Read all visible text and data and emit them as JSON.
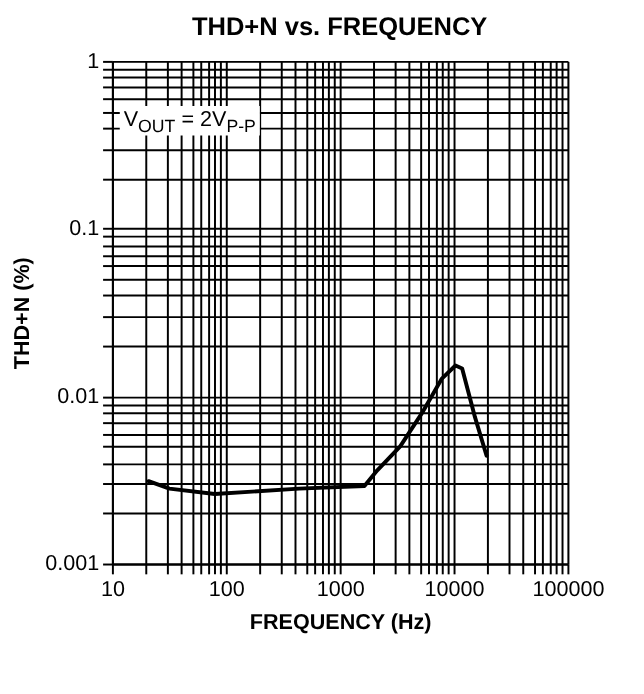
{
  "chart_data": {
    "type": "line",
    "title": "THD+N vs. FREQUENCY",
    "xlabel": "FREQUENCY (Hz)",
    "ylabel": "THD+N (%)",
    "log": "xy",
    "grid": true,
    "annotations": [
      "V$_{OUT}$ = 2V$_{P-P}$"
    ],
    "xlim": [
      10,
      100000
    ],
    "ylim": [
      0.001,
      1
    ],
    "xticks": [
      10,
      {
        "value": 20,
        "label": null
      },
      {
        "value": 30,
        "label": null
      },
      {
        "value": 40,
        "label": null
      },
      {
        "value": 50,
        "label": null
      },
      {
        "value": 60,
        "label": null
      },
      {
        "value": 70,
        "label": null
      },
      {
        "value": 80,
        "label": null
      },
      {
        "value": 90,
        "label": null
      },
      100,
      {
        "value": 200,
        "label": null
      },
      {
        "value": 300,
        "label": null
      },
      {
        "value": 400,
        "label": null
      },
      {
        "value": 500,
        "label": null
      },
      {
        "value": 600,
        "label": null
      },
      {
        "value": 700,
        "label": null
      },
      {
        "value": 800,
        "label": null
      },
      {
        "value": 900,
        "label": null
      },
      1000,
      {
        "value": 2000,
        "label": null
      },
      {
        "value": 3000,
        "label": null
      },
      {
        "value": 4000,
        "label": null
      },
      {
        "value": 5000,
        "label": null
      },
      {
        "value": 6000,
        "label": null
      },
      {
        "value": 7000,
        "label": null
      },
      {
        "value": 8000,
        "label": null
      },
      {
        "value": 9000,
        "label": null
      },
      10000,
      {
        "value": 20000,
        "label": null
      },
      {
        "value": 30000,
        "label": null
      },
      {
        "value": 40000,
        "label": null
      },
      {
        "value": 50000,
        "label": null
      },
      {
        "value": 60000,
        "label": null
      },
      {
        "value": 70000,
        "label": null
      },
      {
        "value": 80000,
        "label": null
      },
      {
        "value": 90000,
        "label": null
      },
      100000
    ],
    "yticks": [
      0.001,
      {
        "value": 0.002,
        "label": null
      },
      {
        "value": 0.003,
        "label": null
      },
      {
        "value": 0.004,
        "label": null
      },
      {
        "value": 0.005,
        "label": null
      },
      {
        "value": 0.006,
        "label": null
      },
      {
        "value": 0.007,
        "label": null
      },
      {
        "value": 0.008,
        "label": null
      },
      {
        "value": 0.009,
        "label": null
      },
      0.01,
      {
        "value": 0.02,
        "label": null
      },
      {
        "value": 0.03,
        "label": null
      },
      {
        "value": 0.04,
        "label": null
      },
      {
        "value": 0.05,
        "label": null
      },
      {
        "value": 0.06,
        "label": null
      },
      {
        "value": 0.07,
        "label": null
      },
      {
        "value": 0.08,
        "label": null
      },
      {
        "value": 0.09,
        "label": null
      },
      0.1,
      {
        "value": 0.2,
        "label": null
      },
      {
        "value": 0.3,
        "label": null
      },
      {
        "value": 0.4,
        "label": null
      },
      {
        "value": 0.5,
        "label": null
      },
      {
        "value": 0.6,
        "label": null
      },
      {
        "value": 0.7,
        "label": null
      },
      {
        "value": 0.8,
        "label": null
      },
      {
        "value": 0.9,
        "label": null
      },
      1
    ],
    "series": [
      {
        "color": "#000000",
        "x": [
          21,
          32,
          80,
          440,
          1650,
          2140,
          3400,
          5400,
          7900,
          10400,
          11900,
          15400,
          19500
        ],
        "values": [
          0.0031,
          0.0028,
          0.0026,
          0.0028,
          0.0029,
          0.0036,
          0.005,
          0.0081,
          0.0127,
          0.0152,
          0.0146,
          0.0075,
          0.0044
        ]
      }
    ]
  }
}
